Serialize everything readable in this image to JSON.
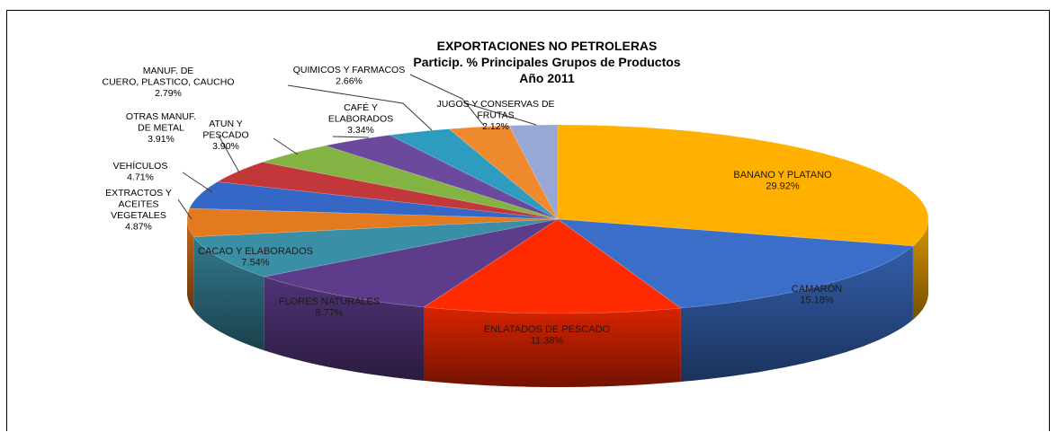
{
  "chart_data": {
    "type": "pie",
    "style": "3d-exploded-none",
    "title": "EXPORTACIONES NO PETROLERAS",
    "subtitle": "Particip. % Principales Grupos de Productos",
    "year_label": "Año 2011",
    "slices": [
      {
        "label": [
          "BANANO Y PLATANO"
        ],
        "value": 29.92,
        "value_text": "29.92%",
        "color": "#FFB000"
      },
      {
        "label": [
          "CAMARÓN"
        ],
        "value": 15.18,
        "value_text": "15.18%",
        "color": "#3B6EC9"
      },
      {
        "label": [
          "ENLATADOS DE PESCADO"
        ],
        "value": 11.38,
        "value_text": "11.38%",
        "color": "#FF2A00"
      },
      {
        "label": [
          "FLORES NATURALES"
        ],
        "value": 8.77,
        "value_text": "8.77%",
        "color": "#5E3C8C"
      },
      {
        "label": [
          "CACAO Y ELABORADOS"
        ],
        "value": 7.54,
        "value_text": "7.54%",
        "color": "#3A8FA6"
      },
      {
        "label": [
          "EXTRACTOS Y",
          "ACEITES",
          "VEGETALES"
        ],
        "value": 4.87,
        "value_text": "4.87%",
        "color": "#E37A1F"
      },
      {
        "label": [
          "VEHÍCULOS"
        ],
        "value": 4.71,
        "value_text": "4.71%",
        "color": "#3568C6"
      },
      {
        "label": [
          "OTRAS MANUF.",
          "DE METAL"
        ],
        "value": 3.91,
        "value_text": "3.91%",
        "color": "#C2383A"
      },
      {
        "label": [
          "ATUN Y",
          "PESCADO"
        ],
        "value": 3.9,
        "value_text": "3.90%",
        "color": "#82B343"
      },
      {
        "label": [
          "CAFÉ Y",
          "ELABORADOS"
        ],
        "value": 3.34,
        "value_text": "3.34%",
        "color": "#6B4A9E"
      },
      {
        "label": [
          "MANUF. DE",
          "CUERO, PLASTICO, CAUCHO"
        ],
        "value": 2.79,
        "value_text": "2.79%",
        "color": "#2E9CBF"
      },
      {
        "label": [
          "QUIMICOS Y FARMACOS"
        ],
        "value": 2.66,
        "value_text": "2.66%",
        "color": "#F08A2E"
      },
      {
        "label": [
          "JUGOS Y CONSERVAS DE",
          "FRUTAS"
        ],
        "value": 2.12,
        "value_text": "2.12%",
        "color": "#97A8D6"
      }
    ]
  }
}
